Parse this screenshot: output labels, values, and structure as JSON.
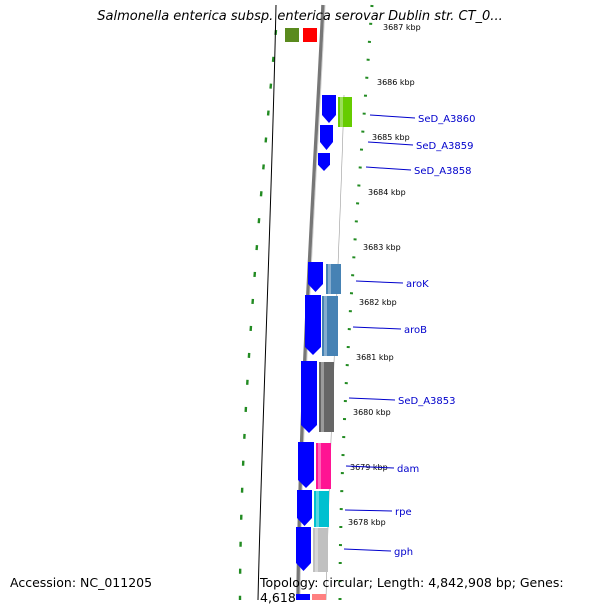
{
  "title": "Salmonella enterica subsp. enterica serovar Dublin str. CT_0...",
  "footer": {
    "accession": "Accession: NC_011205",
    "topology": "Topology: circular; Length: 4,842,908 bp; Genes: 4,618"
  },
  "kbp_ticks": [
    "3687 kbp",
    "3686 kbp",
    "3685 kbp",
    "3684 kbp",
    "3683 kbp",
    "3682 kbp",
    "3681 kbp",
    "3680 kbp",
    "3679 kbp",
    "3678 kbp"
  ],
  "genes": [
    {
      "name": "SeD_A3860",
      "reverse_color": "#0000ff",
      "forward_color": "#66cc00"
    },
    {
      "name": "SeD_A3859",
      "reverse_color": "#0000ff"
    },
    {
      "name": "SeD_A3858",
      "reverse_color": "#0000ff"
    },
    {
      "name": "aroK",
      "reverse_color": "#0000ff",
      "forward_color": "#4682b4"
    },
    {
      "name": "aroB",
      "reverse_color": "#0000ff",
      "forward_color": "#4682b4"
    },
    {
      "name": "SeD_A3853",
      "reverse_color": "#0000ff",
      "forward_color": "#666666"
    },
    {
      "name": "dam",
      "reverse_color": "#0000ff",
      "forward_color": "#ff1493"
    },
    {
      "name": "rpe",
      "reverse_color": "#0000ff",
      "forward_color": "#00c0d0"
    },
    {
      "name": "gph",
      "reverse_color": "#0000ff",
      "forward_color": "#c0c0c0"
    }
  ],
  "colors": {
    "backbone": "#888888",
    "gc_skew": "#228b22",
    "label_text": "#0000cc",
    "label_line": "#0000cc"
  }
}
